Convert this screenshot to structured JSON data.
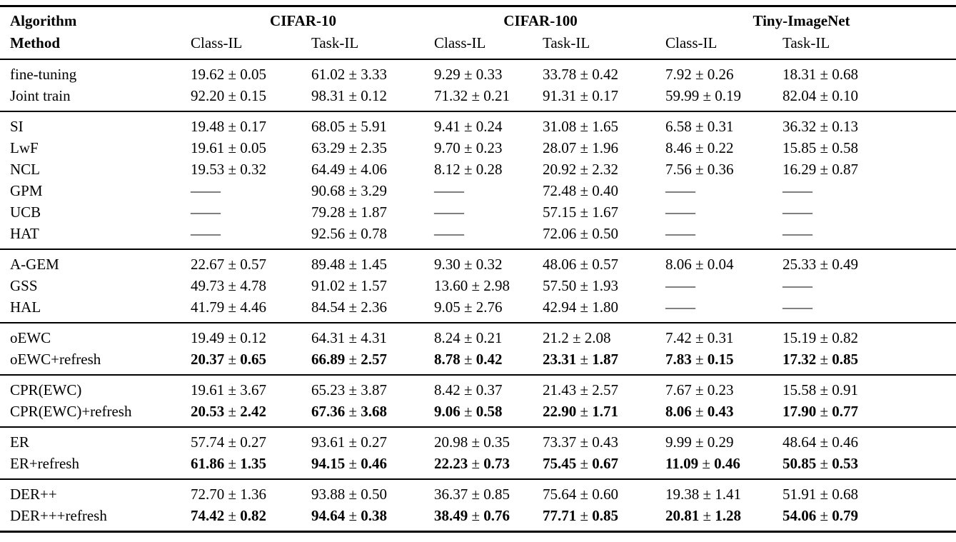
{
  "table": {
    "header": {
      "algorithm_label": "Algorithm",
      "method_label": "Method",
      "datasets": [
        "CIFAR-10",
        "CIFAR-100",
        "Tiny-ImageNet"
      ],
      "subcolumns": {
        "class_il": "Class-IL",
        "task_il": "Task-IL"
      }
    },
    "empty_marker": "——",
    "groups": [
      {
        "rows": [
          {
            "method": "fine-tuning",
            "bold": false,
            "values": [
              "19.62 ± 0.05",
              "61.02 ± 3.33",
              "9.29 ± 0.33",
              "33.78 ± 0.42",
              "7.92 ± 0.26",
              "18.31 ± 0.68"
            ]
          },
          {
            "method": "Joint train",
            "bold": false,
            "values": [
              "92.20 ± 0.15",
              "98.31 ± 0.12",
              "71.32 ± 0.21",
              "91.31 ± 0.17",
              "59.99 ± 0.19",
              "82.04 ± 0.10"
            ]
          }
        ]
      },
      {
        "rows": [
          {
            "method": "SI",
            "bold": false,
            "values": [
              "19.48 ± 0.17",
              "68.05 ± 5.91",
              "9.41 ± 0.24",
              "31.08 ± 1.65",
              "6.58 ± 0.31",
              "36.32 ± 0.13"
            ]
          },
          {
            "method": "LwF",
            "bold": false,
            "values": [
              "19.61 ± 0.05",
              "63.29 ± 2.35",
              "9.70 ± 0.23",
              "28.07 ± 1.96",
              "8.46 ± 0.22",
              "15.85 ± 0.58"
            ]
          },
          {
            "method": "NCL",
            "bold": false,
            "values": [
              "19.53 ± 0.32",
              "64.49 ± 4.06",
              "8.12 ± 0.28",
              "20.92 ± 2.32",
              "7.56 ± 0.36",
              "16.29 ± 0.87"
            ]
          },
          {
            "method": "GPM",
            "bold": false,
            "values": [
              "——",
              "90.68 ± 3.29",
              "——",
              "72.48 ± 0.40",
              "——",
              "——"
            ]
          },
          {
            "method": "UCB",
            "bold": false,
            "values": [
              "——",
              "79.28 ± 1.87",
              "——",
              "57.15 ± 1.67",
              "——",
              "——"
            ]
          },
          {
            "method": "HAT",
            "bold": false,
            "values": [
              "——",
              "92.56 ± 0.78",
              "——",
              "72.06 ± 0.50",
              "——",
              "——"
            ]
          }
        ]
      },
      {
        "rows": [
          {
            "method": "A-GEM",
            "bold": false,
            "values": [
              "22.67 ± 0.57",
              "89.48 ± 1.45",
              "9.30 ± 0.32",
              "48.06 ± 0.57",
              "8.06 ± 0.04",
              "25.33 ± 0.49"
            ]
          },
          {
            "method": "GSS",
            "bold": false,
            "values": [
              "49.73 ± 4.78",
              "91.02 ± 1.57",
              "13.60 ± 2.98",
              "57.50 ± 1.93",
              "——",
              "——"
            ]
          },
          {
            "method": "HAL",
            "bold": false,
            "values": [
              "41.79 ± 4.46",
              "84.54 ± 2.36",
              "9.05 ± 2.76",
              "42.94 ± 1.80",
              "——",
              "——"
            ]
          }
        ]
      },
      {
        "rows": [
          {
            "method": "oEWC",
            "bold": false,
            "values": [
              "19.49 ± 0.12",
              "64.31 ± 4.31",
              "8.24 ± 0.21",
              "21.2 ± 2.08",
              "7.42 ± 0.31",
              "15.19 ± 0.82"
            ]
          },
          {
            "method": "oEWC+refresh",
            "bold": true,
            "values": [
              "20.37 ± 0.65",
              "66.89 ± 2.57",
              "8.78 ± 0.42",
              "23.31 ± 1.87",
              "7.83 ± 0.15",
              "17.32 ± 0.85"
            ]
          }
        ]
      },
      {
        "rows": [
          {
            "method": "CPR(EWC)",
            "bold": false,
            "values": [
              "19.61 ± 3.67",
              "65.23 ± 3.87",
              "8.42 ± 0.37",
              "21.43 ± 2.57",
              "7.67 ± 0.23",
              "15.58 ± 0.91"
            ]
          },
          {
            "method": "CPR(EWC)+refresh",
            "bold": true,
            "values": [
              "20.53 ± 2.42",
              "67.36 ± 3.68",
              "9.06 ± 0.58",
              "22.90 ± 1.71",
              "8.06 ± 0.43",
              "17.90 ± 0.77"
            ]
          }
        ]
      },
      {
        "rows": [
          {
            "method": "ER",
            "bold": false,
            "values": [
              "57.74 ± 0.27",
              "93.61 ± 0.27",
              "20.98 ± 0.35",
              "73.37 ± 0.43",
              "9.99 ± 0.29",
              "48.64 ± 0.46"
            ]
          },
          {
            "method": "ER+refresh",
            "bold": true,
            "values": [
              "61.86 ± 1.35",
              "94.15 ± 0.46",
              "22.23 ± 0.73",
              "75.45 ± 0.67",
              "11.09 ± 0.46",
              "50.85 ± 0.53"
            ]
          }
        ]
      },
      {
        "rows": [
          {
            "method": "DER++",
            "bold": false,
            "values": [
              "72.70 ± 1.36",
              "93.88 ± 0.50",
              "36.37 ± 0.85",
              "75.64 ± 0.60",
              "19.38 ± 1.41",
              "51.91 ± 0.68"
            ]
          },
          {
            "method": "DER+++refresh",
            "bold": true,
            "values": [
              "74.42 ± 0.82",
              "94.64 ± 0.38",
              "38.49 ± 0.76",
              "77.71 ± 0.85",
              "20.81 ± 1.28",
              "54.06 ± 0.79"
            ]
          }
        ]
      }
    ]
  }
}
